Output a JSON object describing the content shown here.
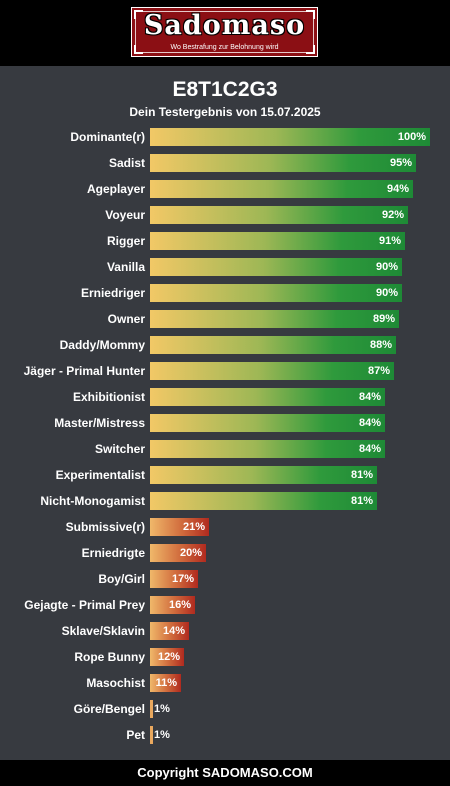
{
  "header": {
    "logo_text": "Sadomaso",
    "logo_tagline": "Wo Bestrafung zur Belohnung wird"
  },
  "colors": {
    "background": "#373a40",
    "high_bar_end": "#1e8a36",
    "low_bar_end": "#b02a1f",
    "bar_start": "#f2c866",
    "logo_red": "#8b0f14"
  },
  "footer": {
    "text": "Copyright SADOMASO.COM"
  },
  "chart_data": {
    "type": "bar",
    "orientation": "horizontal",
    "title": "E8T1C2G3",
    "subtitle": "Dein Testergebnis von 15.07.2025",
    "xlim": [
      0,
      100
    ],
    "value_suffix": "%",
    "categories": [
      "Dominante(r)",
      "Sadist",
      "Ageplayer",
      "Voyeur",
      "Rigger",
      "Vanilla",
      "Erniedriger",
      "Owner",
      "Daddy/Mommy",
      "Jäger - Primal Hunter",
      "Exhibitionist",
      "Master/Mistress",
      "Switcher",
      "Experimentalist",
      "Nicht-Monogamist",
      "Submissive(r)",
      "Erniedrigte",
      "Boy/Girl",
      "Gejagte - Primal Prey",
      "Sklave/Sklavin",
      "Rope Bunny",
      "Masochist",
      "Göre/Bengel",
      "Pet"
    ],
    "values": [
      100,
      95,
      94,
      92,
      91,
      90,
      90,
      89,
      88,
      87,
      84,
      84,
      84,
      81,
      81,
      21,
      20,
      17,
      16,
      14,
      12,
      11,
      1,
      1
    ],
    "grid": false,
    "legend": "none"
  }
}
